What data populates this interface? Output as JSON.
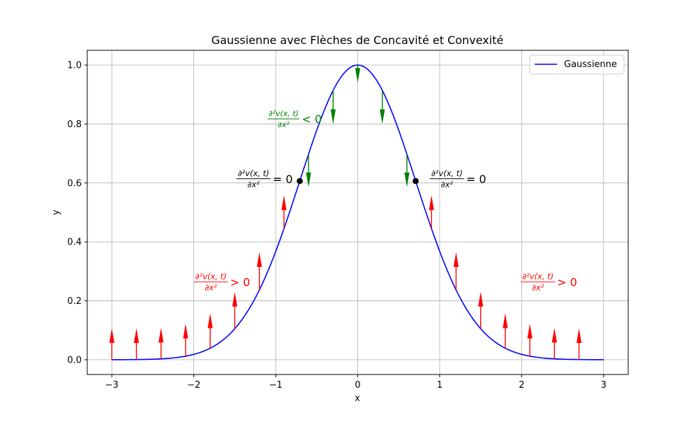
{
  "chart_data": {
    "type": "line",
    "title": "Gaussienne avec Flèches de Concavité et Convexité",
    "xlabel": "x",
    "ylabel": "y",
    "xlim": [
      -3.3,
      3.3
    ],
    "ylim": [
      -0.05,
      1.05
    ],
    "xticks": [
      -3,
      -2,
      -1,
      0,
      1,
      2,
      3
    ],
    "xtick_labels": [
      "−3",
      "−2",
      "−1",
      "0",
      "1",
      "2",
      "3"
    ],
    "yticks": [
      0.0,
      0.2,
      0.4,
      0.6,
      0.8,
      1.0
    ],
    "ytick_labels": [
      "0.0",
      "0.2",
      "0.4",
      "0.6",
      "0.8",
      "1.0"
    ],
    "grid": true,
    "legend": {
      "placement": "top-right",
      "entries": [
        {
          "label": "Gaussienne",
          "color": "#0000ff"
        }
      ]
    },
    "series": [
      {
        "name": "Gaussienne",
        "function": "exp(-x^2)",
        "x_range": [
          -3,
          3
        ],
        "color": "#0000ff"
      }
    ],
    "inflection_points": [
      {
        "x": -0.7071,
        "y": 0.6065,
        "color": "#000000"
      },
      {
        "x": 0.7071,
        "y": 0.6065,
        "color": "#000000"
      }
    ],
    "arrows": {
      "x": [
        -3.0,
        -2.7,
        -2.4,
        -2.1,
        -1.8,
        -1.5,
        -1.2,
        -0.9,
        -0.6,
        -0.3,
        0.0,
        0.3,
        0.6,
        0.9,
        1.2,
        1.5,
        1.8,
        2.1,
        2.4,
        2.7
      ],
      "dy": [
        0.107,
        0.106,
        0.105,
        0.11,
        0.118,
        0.125,
        0.128,
        0.113,
        -0.112,
        -0.114,
        -0.06,
        -0.114,
        -0.112,
        0.113,
        0.128,
        0.125,
        0.118,
        0.11,
        0.105,
        0.106
      ],
      "up_color": "#ff0000",
      "down_color": "#008000"
    },
    "annotations": [
      {
        "id": "concave",
        "x": -1.1,
        "y": 0.815,
        "frac_num": "∂²v(x, t)",
        "frac_den": "∂x²",
        "rel": "< 0",
        "color": "#008000",
        "size": "small"
      },
      {
        "id": "infl-left",
        "x": -1.48,
        "y": 0.612,
        "frac_num": "∂²v(x, t)",
        "frac_den": "∂x²",
        "rel": "= 0",
        "color": "#000000",
        "size": "normal"
      },
      {
        "id": "infl-right",
        "x": 0.88,
        "y": 0.612,
        "frac_num": "∂²v(x, t)",
        "frac_den": "∂x²",
        "rel": "= 0",
        "color": "#000000",
        "size": "normal"
      },
      {
        "id": "convex-left",
        "x": -2.0,
        "y": 0.262,
        "frac_num": "∂²v(x, t)",
        "frac_den": "∂x²",
        "rel": "> 0",
        "color": "#ff0000",
        "size": "normal"
      },
      {
        "id": "convex-right",
        "x": 1.99,
        "y": 0.262,
        "frac_num": "∂²v(x, t)",
        "frac_den": "∂x²",
        "rel": "> 0",
        "color": "#ff0000",
        "size": "normal"
      }
    ]
  }
}
